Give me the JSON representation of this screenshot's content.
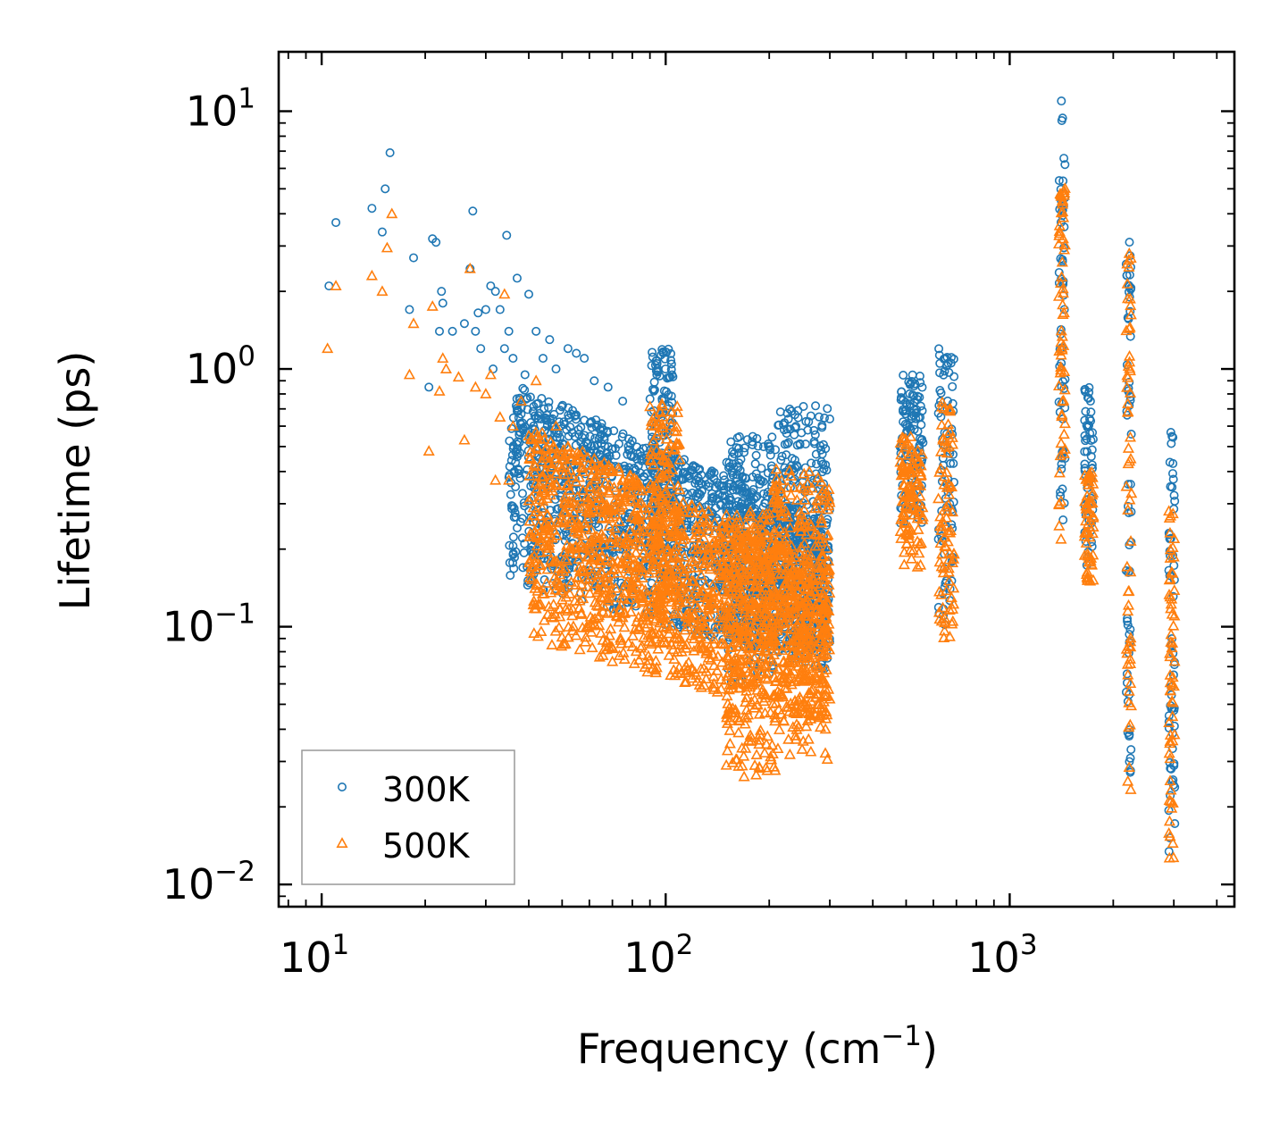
{
  "chart_data": {
    "type": "scatter",
    "xscale": "log",
    "yscale": "log",
    "xlabel": "Frequency (cm",
    "xlabel_exp": "−1",
    "xlabel_close": ")",
    "ylabel": "Lifetime (ps)",
    "xlim": [
      7.5,
      4500
    ],
    "ylim": [
      0.0082,
      17
    ],
    "x_ticks": [
      {
        "base": "10",
        "exp": "1",
        "value": 10
      },
      {
        "base": "10",
        "exp": "2",
        "value": 100
      },
      {
        "base": "10",
        "exp": "3",
        "value": 1000
      }
    ],
    "y_ticks": [
      {
        "base": "10",
        "exp": "1",
        "value": 10
      },
      {
        "base": "10",
        "exp": "0",
        "value": 1
      },
      {
        "base": "10",
        "exp": "−1",
        "value": 0.1
      },
      {
        "base": "10",
        "exp": "−2",
        "value": 0.01
      }
    ],
    "legend_position": "lower-left",
    "series": [
      {
        "name": "300K",
        "marker": "circle",
        "color": "#1f77b4",
        "points": [
          [
            10.5,
            2.1
          ],
          [
            11,
            3.7
          ],
          [
            14,
            4.2
          ],
          [
            15,
            3.4
          ],
          [
            15.3,
            5.0
          ],
          [
            15.8,
            6.9
          ],
          [
            18,
            1.7
          ],
          [
            18.5,
            2.7
          ],
          [
            20.5,
            0.85
          ],
          [
            21,
            3.2
          ],
          [
            21.5,
            3.1
          ],
          [
            22,
            1.4
          ],
          [
            22.3,
            2.0
          ],
          [
            22.5,
            1.8
          ],
          [
            24,
            1.4
          ],
          [
            26,
            1.5
          ],
          [
            27,
            2.45
          ],
          [
            27.5,
            4.1
          ],
          [
            28,
            1.4
          ],
          [
            28.5,
            1.65
          ],
          [
            29,
            1.2
          ],
          [
            30,
            1.7
          ],
          [
            31,
            2.1
          ],
          [
            31.5,
            1.0
          ],
          [
            32,
            2.0
          ],
          [
            33,
            1.7
          ],
          [
            34,
            1.2
          ],
          [
            34.5,
            3.3
          ],
          [
            35,
            1.4
          ],
          [
            36,
            1.1
          ],
          [
            37,
            2.25
          ],
          [
            39,
            0.95
          ],
          [
            40,
            1.95
          ],
          [
            42,
            1.4
          ],
          [
            44,
            1.1
          ],
          [
            46,
            1.3
          ],
          [
            48,
            1.0
          ],
          [
            52,
            1.2
          ],
          [
            55,
            1.15
          ],
          [
            58,
            1.1
          ],
          [
            62,
            0.9
          ],
          [
            68,
            0.85
          ],
          [
            75,
            0.75
          ]
        ],
        "bands": [
          {
            "f0": 35,
            "f1": 300,
            "lo": 0.15,
            "hi": 0.9,
            "shape": "decay"
          },
          {
            "f0": 90,
            "f1": 105,
            "lo": 0.25,
            "hi": 1.2
          },
          {
            "f0": 150,
            "f1": 210,
            "lo": 0.06,
            "hi": 0.55
          },
          {
            "f0": 210,
            "f1": 300,
            "lo": 0.08,
            "hi": 0.72
          },
          {
            "f0": 480,
            "f1": 560,
            "lo": 0.25,
            "hi": 0.95
          },
          {
            "f0": 620,
            "f1": 690,
            "lo": 0.1,
            "hi": 1.2
          },
          {
            "f0": 1390,
            "f1": 1450,
            "lo": 0.25,
            "hi": 11
          },
          {
            "f0": 1650,
            "f1": 1750,
            "lo": 0.17,
            "hi": 0.85
          },
          {
            "f0": 2180,
            "f1": 2260,
            "lo": 0.022,
            "hi": 3.2
          },
          {
            "f0": 2900,
            "f1": 3020,
            "lo": 0.013,
            "hi": 0.57
          }
        ]
      },
      {
        "name": "500K",
        "marker": "triangle",
        "color": "#ff7f0e",
        "points": [
          [
            10.4,
            1.2
          ],
          [
            11,
            2.1
          ],
          [
            14,
            2.3
          ],
          [
            15,
            2.0
          ],
          [
            15.5,
            2.95
          ],
          [
            16,
            4.0
          ],
          [
            18,
            0.95
          ],
          [
            18.5,
            1.5
          ],
          [
            20.5,
            0.48
          ],
          [
            21,
            1.75
          ],
          [
            22,
            0.82
          ],
          [
            22.5,
            1.1
          ],
          [
            23,
            1.0
          ],
          [
            25,
            0.93
          ],
          [
            26,
            0.53
          ],
          [
            27,
            2.45
          ],
          [
            28,
            0.85
          ],
          [
            30,
            0.8
          ],
          [
            31,
            0.95
          ],
          [
            32,
            0.37
          ],
          [
            33,
            0.65
          ],
          [
            34,
            1.95
          ],
          [
            35,
            0.37
          ],
          [
            36,
            0.6
          ],
          [
            38,
            0.75
          ],
          [
            40,
            0.55
          ],
          [
            42,
            0.9
          ],
          [
            44,
            0.38
          ],
          [
            46,
            0.23
          ],
          [
            48,
            0.6
          ],
          [
            52,
            0.5
          ],
          [
            55,
            0.45
          ],
          [
            60,
            0.35
          ],
          [
            65,
            0.42
          ]
        ],
        "bands": [
          {
            "f0": 40,
            "f1": 300,
            "lo": 0.09,
            "hi": 0.6,
            "shape": "decay"
          },
          {
            "f0": 90,
            "f1": 110,
            "lo": 0.085,
            "hi": 0.75
          },
          {
            "f0": 150,
            "f1": 210,
            "lo": 0.026,
            "hi": 0.28
          },
          {
            "f0": 205,
            "f1": 300,
            "lo": 0.03,
            "hi": 0.42
          },
          {
            "f0": 480,
            "f1": 560,
            "lo": 0.17,
            "hi": 0.55
          },
          {
            "f0": 620,
            "f1": 690,
            "lo": 0.09,
            "hi": 0.75
          },
          {
            "f0": 1390,
            "f1": 1450,
            "lo": 0.21,
            "hi": 6.0
          },
          {
            "f0": 1650,
            "f1": 1750,
            "lo": 0.15,
            "hi": 0.4
          },
          {
            "f0": 2180,
            "f1": 2260,
            "lo": 0.018,
            "hi": 3.1
          },
          {
            "f0": 2900,
            "f1": 3020,
            "lo": 0.011,
            "hi": 0.34
          }
        ]
      }
    ]
  }
}
